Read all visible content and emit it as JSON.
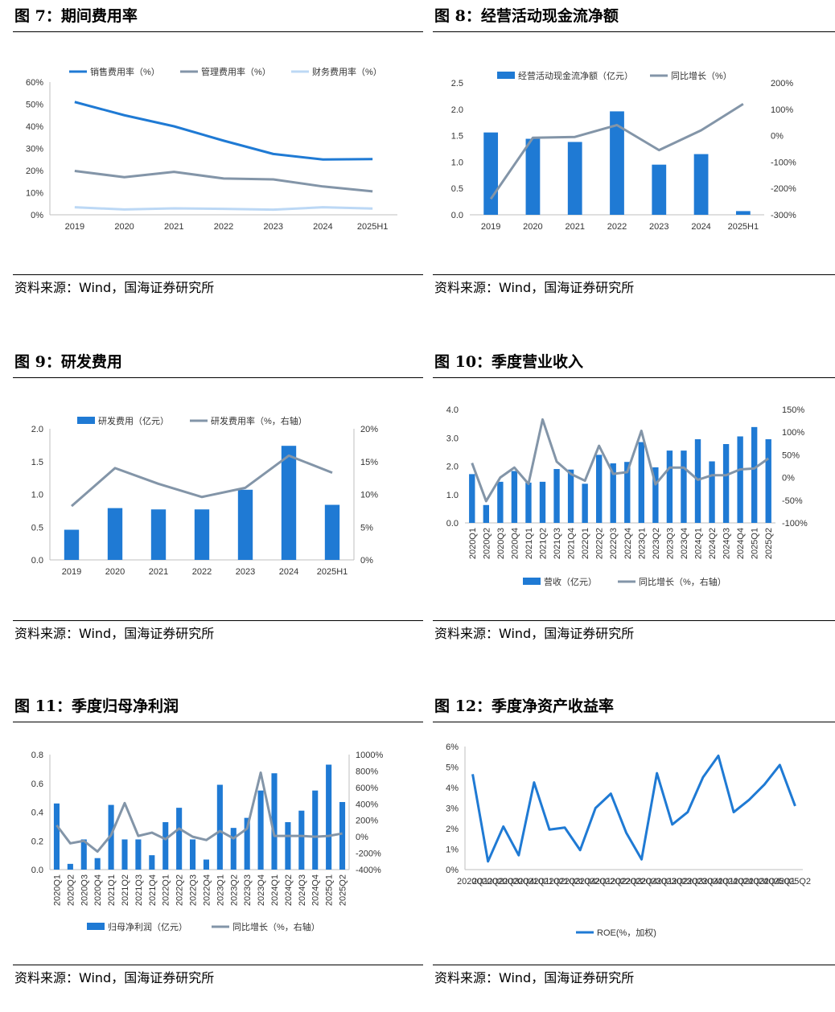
{
  "colors": {
    "blue": "#1f7ad4",
    "gray": "#8395a8",
    "light": "#bcd8f5"
  },
  "source_text": "资料来源：Wind，国海证券研究所",
  "figures": [
    {
      "title": "图 7：期间费用率",
      "source": "资料来源：Wind，国海证券研究所"
    },
    {
      "title": "图 8：经营活动现金流净额",
      "source": "资料来源：Wind，国海证券研究所"
    },
    {
      "title": "图 9：研发费用",
      "source": "资料来源：Wind，国海证券研究所"
    },
    {
      "title": "图 10：季度营业收入",
      "source": "资料来源：Wind，国海证券研究所"
    },
    {
      "title": "图 11：季度归母净利润",
      "source": "资料来源：Wind，国海证券研究所"
    },
    {
      "title": "图 12：季度净资产收益率",
      "source": "资料来源：Wind，国海证券研究所"
    }
  ],
  "chart_data": [
    {
      "type": "line",
      "categories": [
        "2019",
        "2020",
        "2021",
        "2022",
        "2023",
        "2024",
        "2025H1"
      ],
      "series": [
        {
          "name": "销售费用率（%）",
          "values": [
            51,
            45,
            40,
            33.5,
            27.5,
            25,
            25.2
          ]
        },
        {
          "name": "管理费用率（%）",
          "values": [
            19.8,
            17,
            19.4,
            16.4,
            16,
            12.8,
            10.6
          ]
        },
        {
          "name": "财务费用率（%）",
          "values": [
            3.4,
            2.4,
            2.9,
            2.7,
            2.3,
            3.4,
            2.8
          ]
        }
      ],
      "ylim": [
        0,
        60
      ],
      "yticks": [
        "0%",
        "10%",
        "20%",
        "30%",
        "40%",
        "50%",
        "60%"
      ],
      "legend": "top"
    },
    {
      "type": "bar+line",
      "categories": [
        "2019",
        "2020",
        "2021",
        "2022",
        "2023",
        "2024",
        "2025H1"
      ],
      "series": [
        {
          "name": "经营活动现金流净额（亿元）",
          "axis": "left",
          "values": [
            1.56,
            1.44,
            1.38,
            1.96,
            0.95,
            1.15,
            0.07
          ]
        },
        {
          "name": "同比增长（%）",
          "axis": "right",
          "values": [
            -240,
            -8,
            -5,
            40,
            -55,
            20,
            120
          ]
        }
      ],
      "ylim_left": [
        0,
        2.5
      ],
      "yticks_left": [
        "0.0",
        "0.5",
        "1.0",
        "1.5",
        "2.0",
        "2.5"
      ],
      "ylim_right": [
        -300,
        200
      ],
      "yticks_right": [
        "-300%",
        "-200%",
        "-100%",
        "0%",
        "100%",
        "200%"
      ],
      "legend": "top"
    },
    {
      "type": "bar+line",
      "categories": [
        "2019",
        "2020",
        "2021",
        "2022",
        "2023",
        "2024",
        "2025H1"
      ],
      "series": [
        {
          "name": "研发费用（亿元）",
          "axis": "left",
          "values": [
            0.46,
            0.79,
            0.77,
            0.77,
            1.07,
            1.74,
            0.84
          ]
        },
        {
          "name": "研发费用率（%，右轴）",
          "axis": "right",
          "values": [
            8.2,
            14,
            11.6,
            9.6,
            11,
            15.9,
            13.3
          ]
        }
      ],
      "ylim_left": [
        0,
        2.0
      ],
      "yticks_left": [
        "0.0",
        "0.5",
        "1.0",
        "1.5",
        "2.0"
      ],
      "ylim_right": [
        0,
        20
      ],
      "yticks_right": [
        "0%",
        "5%",
        "10%",
        "15%",
        "20%"
      ],
      "legend": "top"
    },
    {
      "type": "bar+line",
      "categories": [
        "2020Q1",
        "2020Q2",
        "2020Q3",
        "2020Q4",
        "2021Q1",
        "2021Q2",
        "2021Q3",
        "2021Q4",
        "2022Q1",
        "2022Q2",
        "2022Q3",
        "2022Q4",
        "2023Q1",
        "2023Q2",
        "2023Q3",
        "2023Q4",
        "2024Q1",
        "2024Q2",
        "2024Q3",
        "2024Q4",
        "2025Q1",
        "2025Q2"
      ],
      "series": [
        {
          "name": "营收（亿元）",
          "axis": "left",
          "values": [
            1.72,
            0.63,
            1.45,
            1.83,
            1.42,
            1.45,
            1.9,
            1.88,
            1.38,
            2.4,
            2.1,
            2.15,
            2.85,
            1.96,
            2.55,
            2.55,
            2.95,
            2.17,
            2.78,
            3.05,
            3.38,
            2.95
          ]
        },
        {
          "name": "同比增长（%，右轴）",
          "axis": "right",
          "values": [
            32,
            -52,
            0,
            22,
            -14,
            128,
            35,
            8,
            -7,
            70,
            8,
            12,
            103,
            -15,
            22,
            22,
            -5,
            5,
            5,
            18,
            20,
            42
          ]
        }
      ],
      "ylim_left": [
        0,
        4
      ],
      "yticks_left": [
        "0.0",
        "1.0",
        "2.0",
        "3.0",
        "4.0"
      ],
      "ylim_right": [
        -100,
        150
      ],
      "yticks_right": [
        "-100%",
        "-50%",
        "0%",
        "50%",
        "100%",
        "150%"
      ],
      "legend": "bottom"
    },
    {
      "type": "bar+line",
      "categories": [
        "2020Q1",
        "2020Q2",
        "2020Q3",
        "2020Q4",
        "2021Q1",
        "2021Q2",
        "2021Q3",
        "2021Q4",
        "2022Q1",
        "2022Q2",
        "2022Q3",
        "2022Q4",
        "2023Q1",
        "2023Q2",
        "2023Q3",
        "2023Q4",
        "2024Q1",
        "2024Q2",
        "2024Q3",
        "2024Q4",
        "2025Q1",
        "2025Q2"
      ],
      "series": [
        {
          "name": "归母净利润（亿元）",
          "axis": "left",
          "values": [
            0.46,
            0.04,
            0.21,
            0.08,
            0.45,
            0.21,
            0.21,
            0.1,
            0.33,
            0.43,
            0.21,
            0.07,
            0.59,
            0.29,
            0.36,
            0.55,
            0.67,
            0.33,
            0.41,
            0.55,
            0.73,
            0.47
          ]
        },
        {
          "name": "同比增长（%，右轴）",
          "axis": "right",
          "values": [
            140,
            -80,
            -50,
            -180,
            20,
            410,
            10,
            50,
            -30,
            100,
            0,
            -40,
            70,
            -20,
            100,
            780,
            10,
            10,
            10,
            0,
            10,
            40
          ]
        }
      ],
      "ylim_left": [
        0,
        0.8
      ],
      "yticks_left": [
        "0.0",
        "0.2",
        "0.4",
        "0.6",
        "0.8"
      ],
      "ylim_right": [
        -400,
        1000
      ],
      "yticks_right": [
        "-400%",
        "-200%",
        "0%",
        "200%",
        "400%",
        "600%",
        "800%",
        "1000%"
      ],
      "legend": "bottom"
    },
    {
      "type": "line",
      "categories": [
        "2020Q1",
        "2020Q2",
        "2020Q3",
        "2020Q4",
        "2021Q1",
        "2021Q2",
        "2021Q3",
        "2021Q4",
        "2022Q1",
        "2022Q2",
        "2022Q3",
        "2022Q4",
        "2023Q1",
        "2023Q2",
        "2023Q3",
        "2023Q4",
        "2024Q1",
        "2024Q2",
        "2024Q3",
        "2024Q4",
        "2025Q1",
        "2025Q2"
      ],
      "series": [
        {
          "name": "ROE(%，加权)",
          "values": [
            4.65,
            0.4,
            2.1,
            0.7,
            4.25,
            1.95,
            2.05,
            0.95,
            3.0,
            3.7,
            1.8,
            0.5,
            4.7,
            2.2,
            2.8,
            4.5,
            5.55,
            2.8,
            3.4,
            4.15,
            5.1,
            3.1
          ]
        }
      ],
      "ylim": [
        0,
        6
      ],
      "yticks": [
        "0%",
        "1%",
        "2%",
        "3%",
        "4%",
        "5%",
        "6%"
      ],
      "legend": "bottom"
    }
  ]
}
